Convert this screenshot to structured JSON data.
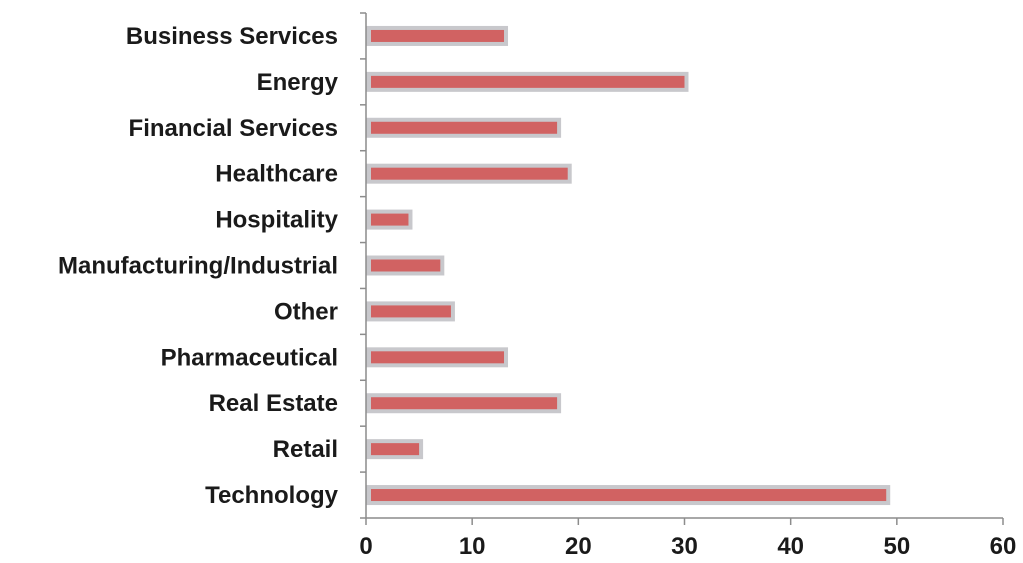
{
  "chart_data": {
    "type": "bar",
    "orientation": "horizontal",
    "categories": [
      "Business Services",
      "Energy",
      "Financial Services",
      "Healthcare",
      "Hospitality",
      "Manufacturing/Industrial",
      "Other",
      "Pharmaceutical",
      "Real Estate",
      "Retail",
      "Technology"
    ],
    "values": [
      13,
      30,
      18,
      19,
      4,
      7,
      8,
      13,
      18,
      5,
      49
    ],
    "xlim": [
      0,
      60
    ],
    "xticks": [
      0,
      10,
      20,
      30,
      40,
      50,
      60
    ],
    "grid": false,
    "colors": {
      "bar_fill": "#d16262",
      "bar_border": "#c8c8cc",
      "axis": "#8c8c8c",
      "text": "#1a1a1a"
    }
  }
}
